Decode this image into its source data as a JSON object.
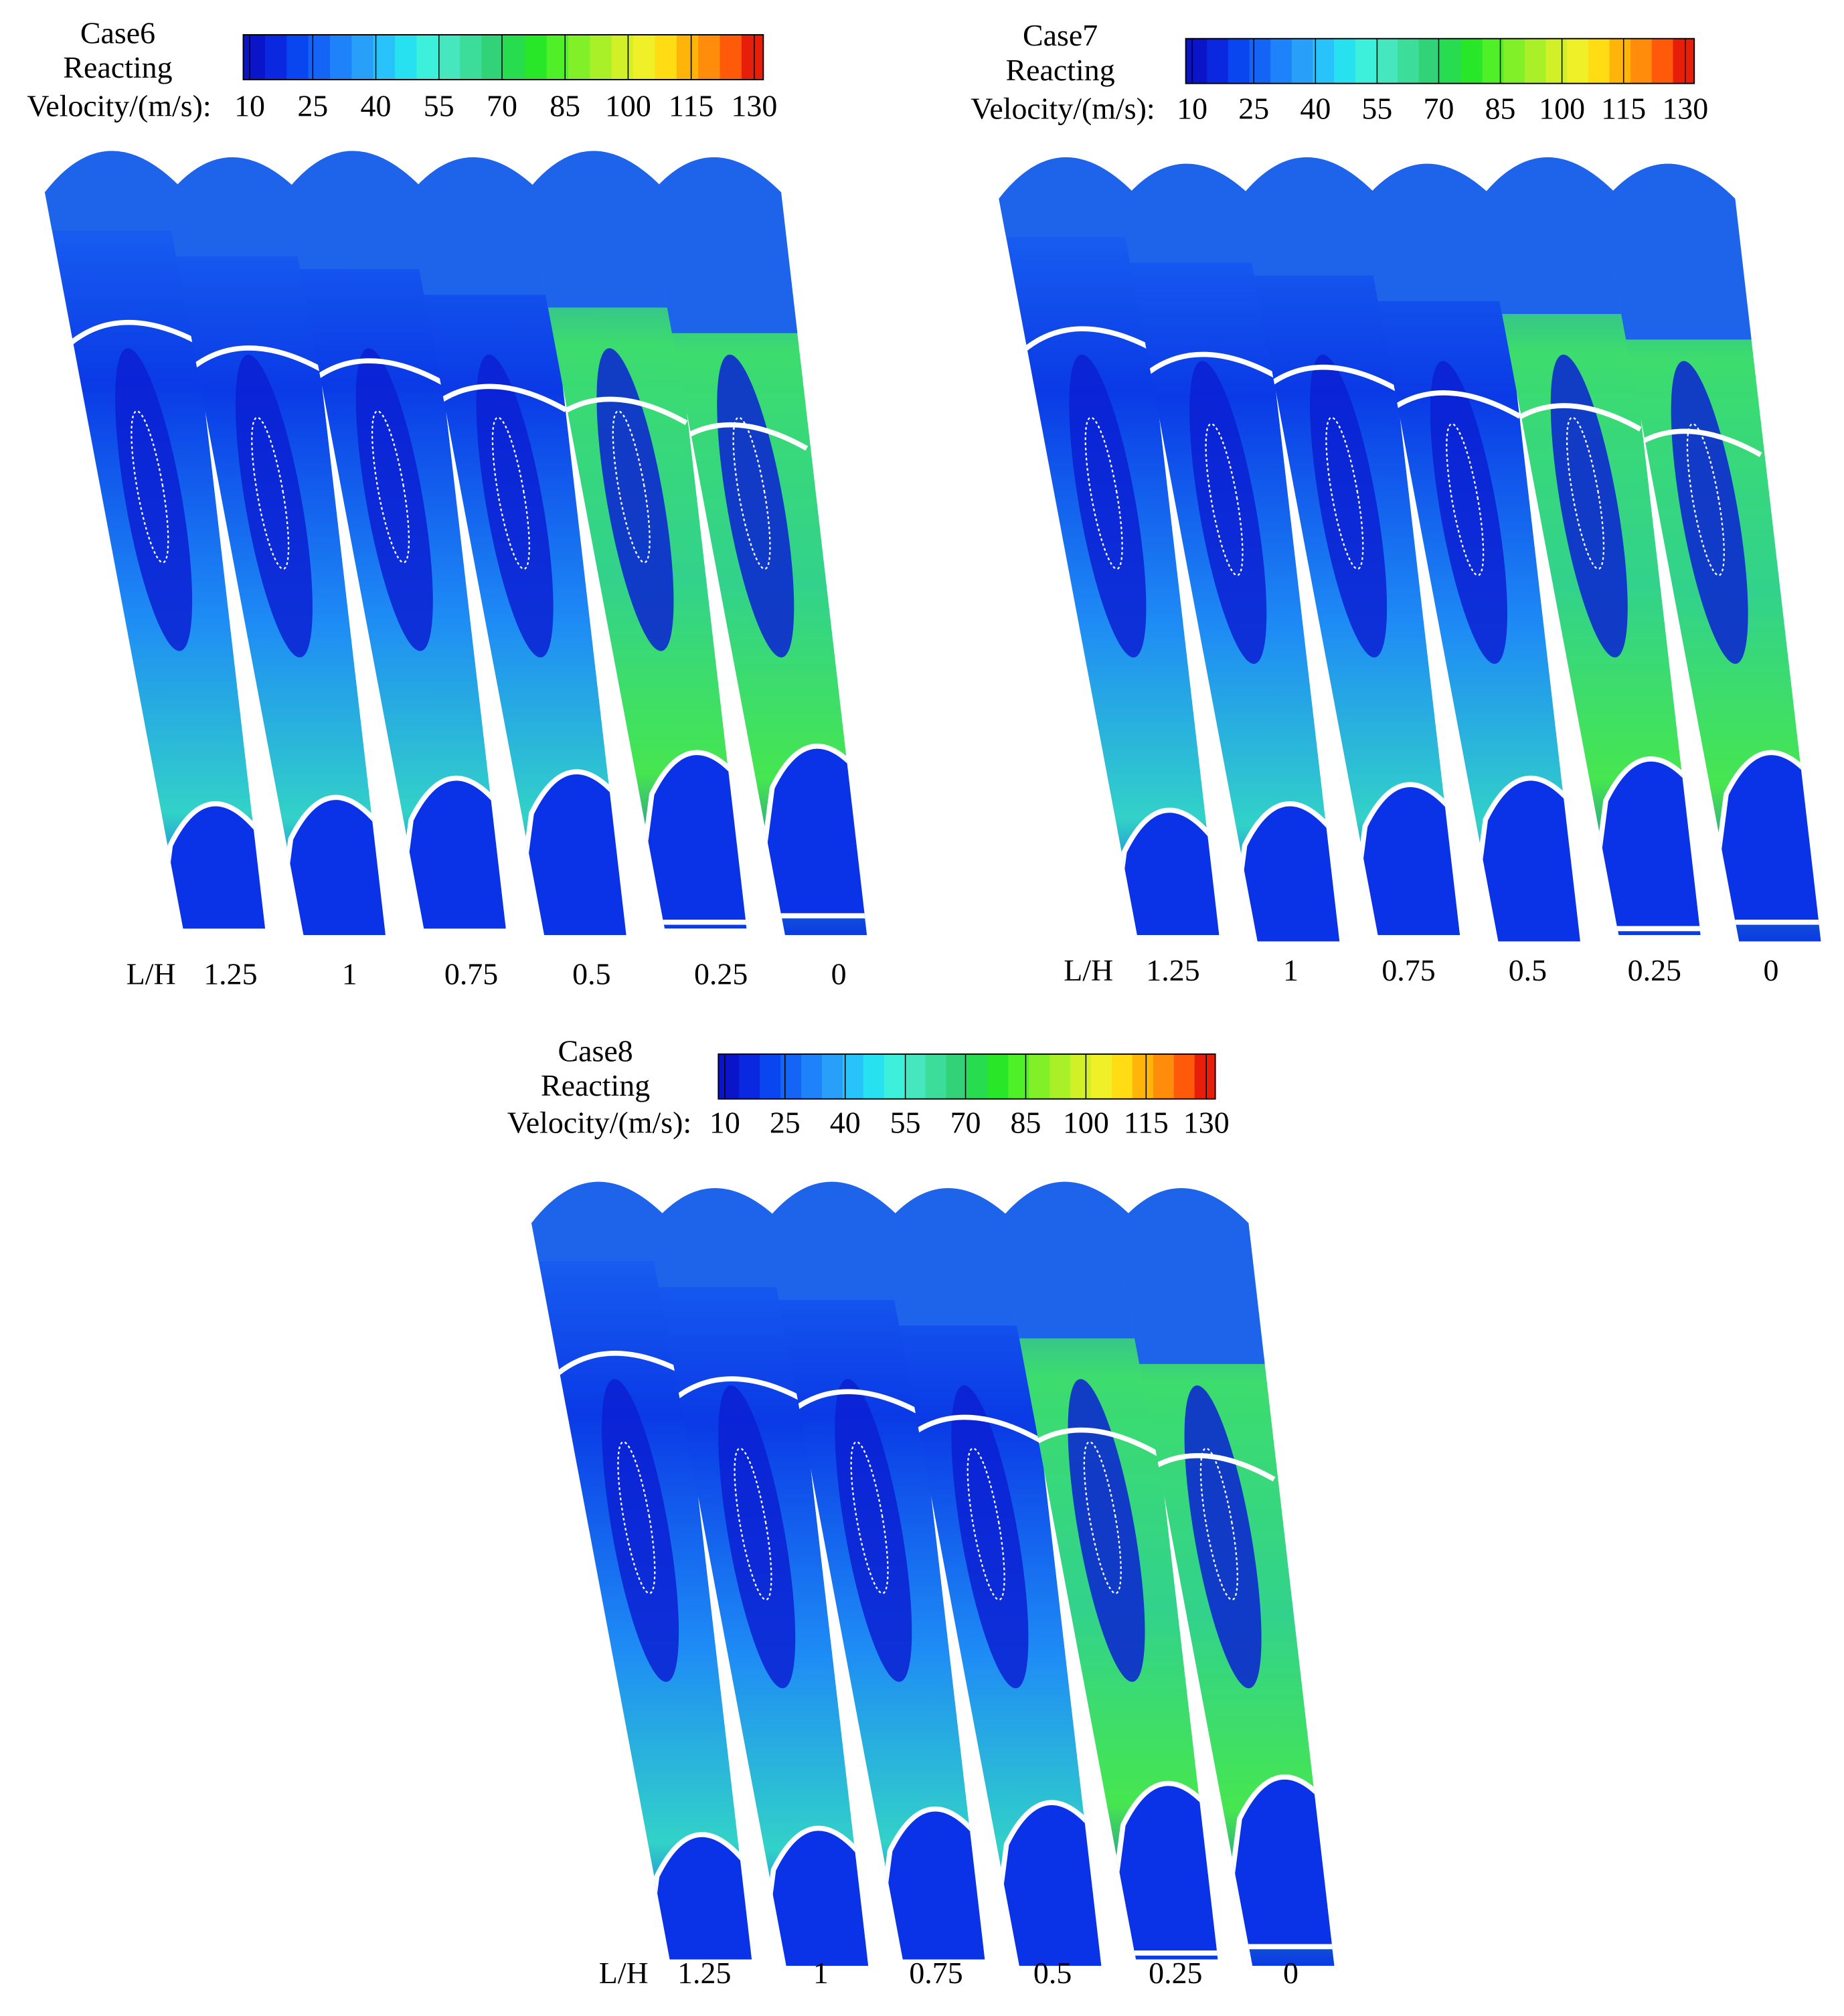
{
  "colormap": [
    "#0a14c8",
    "#0a28e0",
    "#0a46f0",
    "#1464f5",
    "#1e82fa",
    "#28a0fa",
    "#28c3fa",
    "#28e1f0",
    "#3cf0dc",
    "#46e6be",
    "#3cdc9b",
    "#32d278",
    "#28dc50",
    "#28e628",
    "#50f028",
    "#82f028",
    "#aaf028",
    "#d2f028",
    "#f0f028",
    "#ffdc14",
    "#ffb40a",
    "#ff8c0a",
    "#ff5a0a",
    "#e61e0a"
  ],
  "panels": [
    {
      "title": "Case6",
      "subtitle": "Reacting",
      "colorbar": {
        "label": "Velocity/(m/s):",
        "range": [
          10,
          130
        ],
        "ticks": [
          10,
          25,
          40,
          55,
          70,
          85,
          100,
          115,
          130
        ]
      },
      "x_axis": {
        "label": "L/H",
        "values": [
          1.25,
          1,
          0.75,
          0.5,
          0.25,
          0
        ]
      }
    },
    {
      "title": "Case7",
      "subtitle": "Reacting",
      "colorbar": {
        "label": "Velocity/(m/s):",
        "range": [
          10,
          130
        ],
        "ticks": [
          10,
          25,
          40,
          55,
          70,
          85,
          100,
          115,
          130
        ]
      },
      "x_axis": {
        "label": "L/H",
        "values": [
          1.25,
          1,
          0.75,
          0.5,
          0.25,
          0
        ]
      }
    },
    {
      "title": "Case8",
      "subtitle": "Reacting",
      "colorbar": {
        "label": "Velocity/(m/s):",
        "range": [
          10,
          130
        ],
        "ticks": [
          10,
          25,
          40,
          55,
          70,
          85,
          100,
          115,
          130
        ]
      },
      "x_axis": {
        "label": "L/H",
        "values": [
          1.25,
          1,
          0.75,
          0.5,
          0.25,
          0
        ]
      }
    }
  ]
}
